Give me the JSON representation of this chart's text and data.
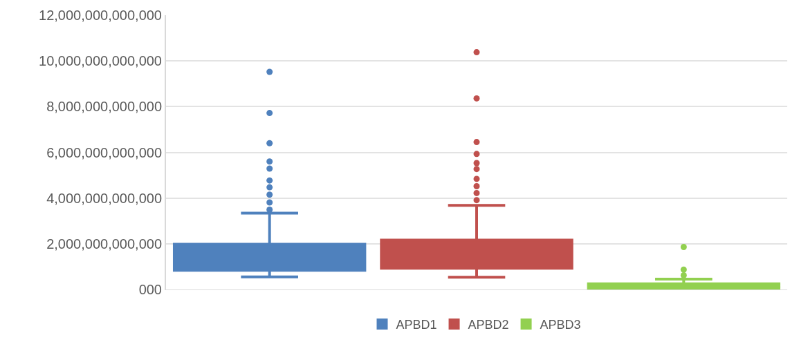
{
  "chart_data": {
    "type": "box",
    "categories": [
      null,
      null,
      null
    ],
    "series": [
      {
        "name": "APBD1",
        "color": "#4f81bd",
        "boxes": [
          {
            "low": 550000000000,
            "q1": 840000000000,
            "median": 1300000000000,
            "q3": 1980000000000,
            "high": 3340000000000,
            "outliers": [
              9520000000000,
              7720000000000,
              6400000000000,
              5600000000000,
              5290000000000,
              4770000000000,
              4470000000000,
              4150000000000,
              3810000000000,
              3490000000000
            ]
          },
          null,
          null
        ]
      },
      {
        "name": "APBD2",
        "color": "#c0504d",
        "boxes": [
          null,
          {
            "low": 540000000000,
            "q1": 930000000000,
            "median": 1400000000000,
            "q3": 2160000000000,
            "high": 3680000000000,
            "outliers": [
              10380000000000,
              8360000000000,
              6450000000000,
              5930000000000,
              5530000000000,
              5270000000000,
              4840000000000,
              4520000000000,
              4220000000000,
              3910000000000
            ]
          },
          null
        ]
      },
      {
        "name": "APBD3",
        "color": "#92d050",
        "boxes": [
          null,
          null,
          {
            "low": 0,
            "q1": 0,
            "median": 100000000000,
            "q3": 250000000000,
            "high": 450000000000,
            "outliers": [
              1860000000000,
              870000000000,
              620000000000
            ]
          }
        ]
      }
    ],
    "ylim": [
      0,
      12000000000000
    ],
    "yticks": [
      {
        "value": 0,
        "label": "000"
      },
      {
        "value": 2000000000000,
        "label": "2,000,000,000,000"
      },
      {
        "value": 4000000000000,
        "label": "4,000,000,000,000"
      },
      {
        "value": 6000000000000,
        "label": "6,000,000,000,000"
      },
      {
        "value": 8000000000000,
        "label": "8,000,000,000,000"
      },
      {
        "value": 10000000000000,
        "label": "10,000,000,000,000"
      },
      {
        "value": 12000000000000,
        "label": "12,000,000,000,000"
      }
    ],
    "grid": "y",
    "legend": "bottom",
    "marker": "circle"
  }
}
